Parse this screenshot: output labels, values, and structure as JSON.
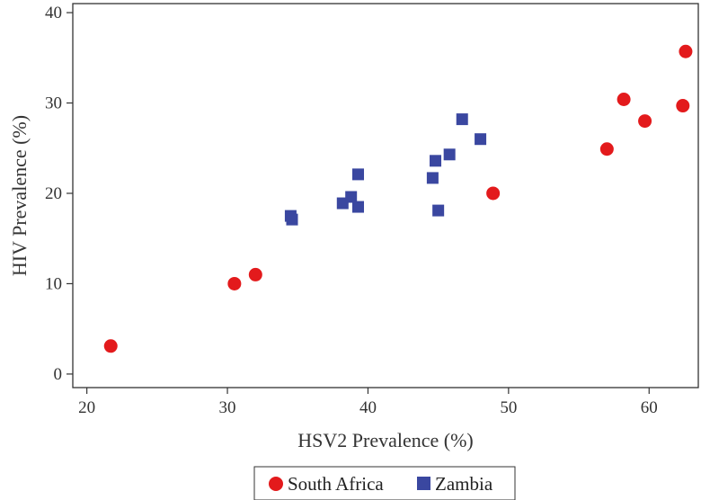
{
  "chart_data": {
    "type": "scatter",
    "xlabel": "HSV2 Prevalence (%)",
    "ylabel": "HIV Prevalence (%)",
    "xlim": [
      19,
      63.5
    ],
    "ylim": [
      -1.5,
      41
    ],
    "xticks": [
      "20",
      "30",
      "40",
      "50",
      "60"
    ],
    "yticks": [
      "0",
      "10",
      "20",
      "30",
      "40"
    ],
    "grid": false,
    "legend": "bottom",
    "series": [
      {
        "name": "South Africa",
        "marker": "circle",
        "color": "#e31a1c",
        "points": [
          {
            "x": 21.7,
            "y": 3.1
          },
          {
            "x": 30.5,
            "y": 10.0
          },
          {
            "x": 32.0,
            "y": 11.0
          },
          {
            "x": 48.9,
            "y": 20.0
          },
          {
            "x": 57.0,
            "y": 24.9
          },
          {
            "x": 58.2,
            "y": 30.4
          },
          {
            "x": 59.7,
            "y": 28.0
          },
          {
            "x": 62.4,
            "y": 29.7
          },
          {
            "x": 62.6,
            "y": 35.7
          }
        ]
      },
      {
        "name": "Zambia",
        "marker": "square",
        "color": "#3a47a0",
        "points": [
          {
            "x": 34.5,
            "y": 17.5
          },
          {
            "x": 34.6,
            "y": 17.1
          },
          {
            "x": 38.2,
            "y": 18.9
          },
          {
            "x": 38.8,
            "y": 19.6
          },
          {
            "x": 39.3,
            "y": 22.1
          },
          {
            "x": 39.3,
            "y": 18.5
          },
          {
            "x": 44.6,
            "y": 21.7
          },
          {
            "x": 44.8,
            "y": 23.6
          },
          {
            "x": 45.0,
            "y": 18.1
          },
          {
            "x": 45.8,
            "y": 24.3
          },
          {
            "x": 46.7,
            "y": 28.2
          },
          {
            "x": 48.0,
            "y": 26.0
          }
        ]
      }
    ]
  }
}
